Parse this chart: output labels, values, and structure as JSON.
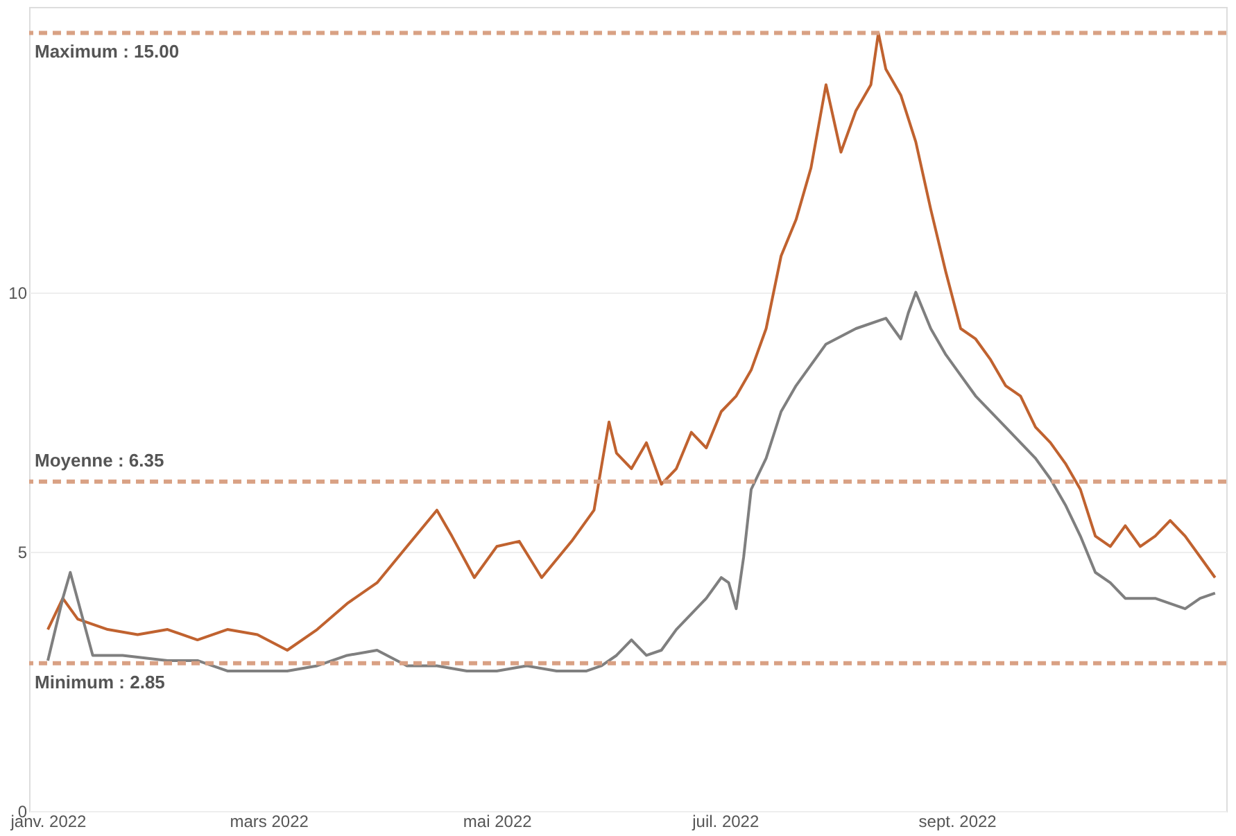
{
  "chart_data": {
    "type": "line",
    "x": [
      "2022-01-01",
      "2022-01-05",
      "2022-01-09",
      "2022-01-17",
      "2022-01-25",
      "2022-02-02",
      "2022-02-10",
      "2022-02-18",
      "2022-02-26",
      "2022-03-06",
      "2022-03-14",
      "2022-03-22",
      "2022-03-30",
      "2022-04-07",
      "2022-04-15",
      "2022-04-19",
      "2022-04-25",
      "2022-05-01",
      "2022-05-07",
      "2022-05-13",
      "2022-05-21",
      "2022-05-27",
      "2022-05-31",
      "2022-06-02",
      "2022-06-06",
      "2022-06-10",
      "2022-06-14",
      "2022-06-18",
      "2022-06-22",
      "2022-06-26",
      "2022-06-30",
      "2022-07-04",
      "2022-07-08",
      "2022-07-12",
      "2022-07-16",
      "2022-07-20",
      "2022-07-24",
      "2022-07-28",
      "2022-08-01",
      "2022-08-05",
      "2022-08-09",
      "2022-08-11",
      "2022-08-13",
      "2022-08-17",
      "2022-08-21",
      "2022-08-25",
      "2022-08-29",
      "2022-09-02",
      "2022-09-06",
      "2022-09-10",
      "2022-09-14",
      "2022-09-18",
      "2022-09-22",
      "2022-09-26",
      "2022-09-30",
      "2022-10-04",
      "2022-10-08",
      "2022-10-12",
      "2022-10-16",
      "2022-10-20",
      "2022-10-24",
      "2022-10-28",
      "2022-11-01",
      "2022-11-05",
      "2022-11-09"
    ],
    "series": [
      {
        "color": "#c0622f",
        "values": [
          3.5,
          4.1,
          3.7,
          3.5,
          3.4,
          3.5,
          3.3,
          3.5,
          3.4,
          3.1,
          3.5,
          4.0,
          4.4,
          5.1,
          5.8,
          5.3,
          4.5,
          5.1,
          5.2,
          4.5,
          5.2,
          5.8,
          7.5,
          6.9,
          6.6,
          7.1,
          6.3,
          6.6,
          7.3,
          7.0,
          7.7,
          8.0,
          8.5,
          9.3,
          10.7,
          11.4,
          12.4,
          14.0,
          12.7,
          13.5,
          14.0,
          15.0,
          14.3,
          13.8,
          12.9,
          11.6,
          10.4,
          9.3,
          9.1,
          8.7,
          8.2,
          8.0,
          7.4,
          7.1,
          6.7,
          6.2,
          5.3,
          5.1,
          5.5,
          5.1,
          5.3,
          5.6,
          5.3,
          4.9,
          4.5
        ]
      },
      {
        "color": "#7f7f7f",
        "x": [
          "2022-01-01",
          "2022-01-05",
          "2022-01-07",
          "2022-01-13",
          "2022-01-21",
          "2022-02-02",
          "2022-02-10",
          "2022-02-18",
          "2022-02-26",
          "2022-03-06",
          "2022-03-14",
          "2022-03-22",
          "2022-03-30",
          "2022-04-07",
          "2022-04-15",
          "2022-04-23",
          "2022-05-01",
          "2022-05-09",
          "2022-05-17",
          "2022-05-25",
          "2022-05-29",
          "2022-06-02",
          "2022-06-06",
          "2022-06-10",
          "2022-06-14",
          "2022-06-18",
          "2022-06-22",
          "2022-06-26",
          "2022-06-30",
          "2022-07-02",
          "2022-07-04",
          "2022-07-06",
          "2022-07-08",
          "2022-07-12",
          "2022-07-16",
          "2022-07-20",
          "2022-07-24",
          "2022-07-28",
          "2022-08-05",
          "2022-08-13",
          "2022-08-17",
          "2022-08-19",
          "2022-08-21",
          "2022-08-25",
          "2022-08-29",
          "2022-09-02",
          "2022-09-06",
          "2022-09-14",
          "2022-09-22",
          "2022-09-26",
          "2022-09-30",
          "2022-10-04",
          "2022-10-08",
          "2022-10-12",
          "2022-10-16",
          "2022-10-24",
          "2022-11-01",
          "2022-11-05",
          "2022-11-09"
        ],
        "values": [
          2.9,
          4.1,
          4.6,
          3.0,
          3.0,
          2.9,
          2.9,
          2.7,
          2.7,
          2.7,
          2.8,
          3.0,
          3.1,
          2.8,
          2.8,
          2.7,
          2.7,
          2.8,
          2.7,
          2.7,
          2.8,
          3.0,
          3.3,
          3.0,
          3.1,
          3.5,
          3.8,
          4.1,
          4.5,
          4.4,
          3.9,
          4.9,
          6.2,
          6.8,
          7.7,
          8.2,
          8.6,
          9.0,
          9.3,
          9.5,
          9.1,
          9.6,
          10.0,
          9.3,
          8.8,
          8.4,
          8.0,
          7.4,
          6.8,
          6.4,
          5.9,
          5.3,
          4.6,
          4.4,
          4.1,
          4.1,
          3.9,
          4.1,
          4.2
        ]
      }
    ],
    "xlim": [
      "2021-12-27",
      "2022-11-12"
    ],
    "xticks": [
      {
        "value": "2022-01-01",
        "label": "janv. 2022"
      },
      {
        "value": "2022-03-01",
        "label": "mars 2022"
      },
      {
        "value": "2022-05-01",
        "label": "mai 2022"
      },
      {
        "value": "2022-07-01",
        "label": "juil. 2022"
      },
      {
        "value": "2022-09-01",
        "label": "sept. 2022"
      }
    ],
    "ylim": [
      0,
      15.5
    ],
    "yticks": [
      0,
      5,
      10
    ],
    "grid": "y",
    "ref_lines": [
      {
        "axis": "y",
        "value": 15.0,
        "label": "Maximum : 15.00",
        "color": "#d9a184",
        "line_style": "dashed"
      },
      {
        "axis": "y",
        "value": 6.35,
        "label": "Moyenne : 6.35",
        "color": "#d9a184",
        "line_style": "dashed"
      },
      {
        "axis": "y",
        "value": 2.85,
        "label": "Minimum : 2.85",
        "color": "#d9a184",
        "line_style": "dashed"
      }
    ]
  }
}
